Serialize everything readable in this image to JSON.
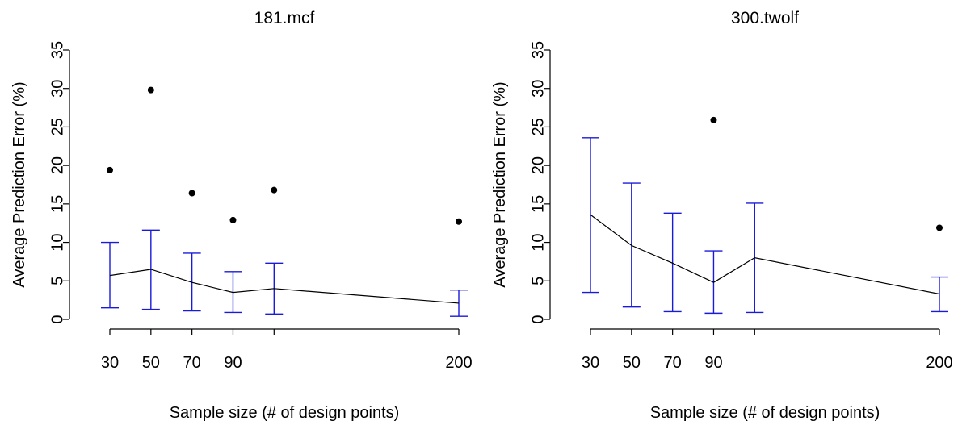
{
  "chart_data": [
    {
      "type": "line",
      "title": "181.mcf",
      "xlabel": "Sample size (# of design points)",
      "ylabel": "Average Prediction Error (%)",
      "x_tick_labels": [
        "30",
        "50",
        "70",
        "90",
        "",
        "200"
      ],
      "x": [
        30,
        50,
        70,
        90,
        110,
        200
      ],
      "y_ticks": [
        0,
        5,
        10,
        15,
        20,
        25,
        30,
        35
      ],
      "ylim": [
        0,
        35
      ],
      "series": [
        {
          "mean": [
            5.7,
            6.5,
            4.8,
            3.5,
            4.0,
            2.1
          ],
          "lower": [
            1.5,
            1.3,
            1.1,
            0.9,
            0.7,
            0.4
          ],
          "upper": [
            10.0,
            11.6,
            8.6,
            6.2,
            7.3,
            3.8
          ],
          "outliers": [
            19.4,
            29.8,
            16.4,
            12.9,
            16.8,
            12.7
          ]
        }
      ],
      "colors": {
        "errbar": "#1a1adb",
        "line": "#000000",
        "points": "#000000"
      }
    },
    {
      "type": "line",
      "title": "300.twolf",
      "xlabel": "Sample size (# of design points)",
      "ylabel": "Average Prediction Error (%)",
      "x_tick_labels": [
        "30",
        "50",
        "70",
        "90",
        "",
        "200"
      ],
      "x": [
        30,
        50,
        70,
        90,
        110,
        200
      ],
      "y_ticks": [
        0,
        5,
        10,
        15,
        20,
        25,
        30,
        35
      ],
      "ylim": [
        0,
        35
      ],
      "series": [
        {
          "mean": [
            13.6,
            9.6,
            7.3,
            4.8,
            8.0,
            3.3
          ],
          "lower": [
            3.5,
            1.6,
            1.0,
            0.8,
            0.9,
            1.0
          ],
          "upper": [
            23.6,
            17.7,
            13.8,
            8.9,
            15.1,
            5.5
          ],
          "outliers": [
            null,
            null,
            null,
            25.9,
            null,
            11.9
          ]
        }
      ],
      "colors": {
        "errbar": "#1a1adb",
        "line": "#000000",
        "points": "#000000"
      }
    }
  ]
}
